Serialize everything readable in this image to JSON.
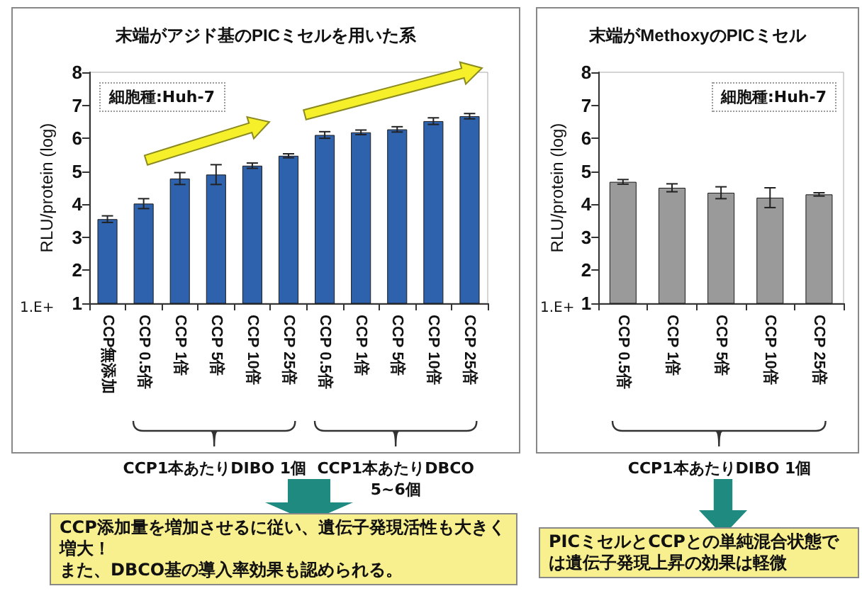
{
  "chart_data": [
    {
      "type": "bar",
      "title": "末端がアジド基のPICミセルを用いた系",
      "ylabel": "RLU/protein (log)",
      "categories": [
        "CCP無添加",
        "CCP 0.5倍",
        "CCP 1倍",
        "CCP 5倍",
        "CCP 10倍",
        "CCP 25倍",
        "CCP 0.5倍",
        "CCP 1倍",
        "CCP 5倍",
        "CCP 10倍",
        "CCP 25倍"
      ],
      "values": [
        3.55,
        4.02,
        4.78,
        4.9,
        5.17,
        5.47,
        6.1,
        6.18,
        6.27,
        6.52,
        6.67
      ],
      "errors": [
        0.1,
        0.15,
        0.18,
        0.3,
        0.08,
        0.06,
        0.1,
        0.07,
        0.08,
        0.1,
        0.08
      ],
      "color": "#2f62ad",
      "ylim": [
        1,
        8
      ],
      "yticks": [
        1,
        2,
        3,
        4,
        5,
        6,
        7,
        8
      ],
      "grid": false,
      "annotations": [
        "細胞種:Huh-7",
        "1.E+",
        "CCP1本あたりDIBO 1個",
        "CCP1本あたりDBCO 5~6個",
        "CCP添加量を増加させるに従い、遺伝子発現活性も大きく増大！",
        "また、DBCO基の導入率効果も認められる。"
      ]
    },
    {
      "type": "bar",
      "title": "末端がMethoxyのPICミセル",
      "ylabel": "RLU/protein (log)",
      "categories": [
        "CCP 0.5倍",
        "CCP 1倍",
        "CCP 5倍",
        "CCP 10倍",
        "CCP 25倍"
      ],
      "values": [
        4.68,
        4.5,
        4.35,
        4.2,
        4.3
      ],
      "errors": [
        0.07,
        0.12,
        0.18,
        0.3,
        0.05
      ],
      "color": "#9a9a9a",
      "ylim": [
        1,
        8
      ],
      "yticks": [
        1,
        2,
        3,
        4,
        5,
        6,
        7,
        8
      ],
      "grid": false,
      "annotations": [
        "細胞種:Huh-7",
        "1.E+",
        "CCP1本あたりDIBO 1個",
        "PICミセルとCCPとの単純混合状態では遺伝子発現上昇の効果は軽微"
      ]
    }
  ]
}
